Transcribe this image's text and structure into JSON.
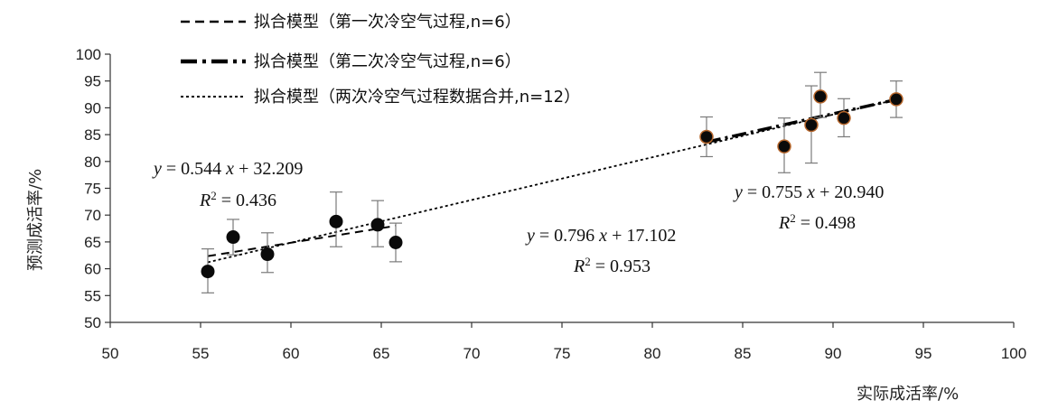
{
  "chart_data": {
    "type": "scatter",
    "xlabel": "实际成活率/%",
    "ylabel": "预测成活率/%",
    "xlim": [
      50,
      100
    ],
    "ylim": [
      50,
      100
    ],
    "x_ticks": [
      50,
      55,
      60,
      65,
      70,
      75,
      80,
      85,
      90,
      95,
      100
    ],
    "y_ticks": [
      50,
      55,
      60,
      65,
      70,
      75,
      80,
      85,
      90,
      95,
      100
    ],
    "grid": false,
    "legend_position": "top-left",
    "series": [
      {
        "name": "第一次冷空气过程",
        "points": [
          {
            "x": 55.4,
            "y": 59.5,
            "err_low": 4.0,
            "err_high": 4.2
          },
          {
            "x": 56.8,
            "y": 65.9,
            "err_low": 3.3,
            "err_high": 3.3
          },
          {
            "x": 58.7,
            "y": 62.7,
            "err_low": 3.4,
            "err_high": 4.0
          },
          {
            "x": 62.5,
            "y": 68.8,
            "err_low": 4.7,
            "err_high": 5.5
          },
          {
            "x": 64.8,
            "y": 68.2,
            "err_low": 4.1,
            "err_high": 4.5
          },
          {
            "x": 65.8,
            "y": 64.9,
            "err_low": 3.6,
            "err_high": 3.6
          }
        ]
      },
      {
        "name": "第二次冷空气过程",
        "points": [
          {
            "x": 83.0,
            "y": 84.6,
            "err_low": 3.7,
            "err_high": 3.7
          },
          {
            "x": 87.3,
            "y": 82.8,
            "err_low": 4.9,
            "err_high": 5.3
          },
          {
            "x": 88.8,
            "y": 86.8,
            "err_low": 7.1,
            "err_high": 7.3
          },
          {
            "x": 89.3,
            "y": 92.1,
            "err_low": 3.9,
            "err_high": 4.5
          },
          {
            "x": 90.6,
            "y": 88.1,
            "err_low": 3.5,
            "err_high": 3.6
          },
          {
            "x": 93.5,
            "y": 91.6,
            "err_low": 3.4,
            "err_high": 3.4
          }
        ]
      }
    ],
    "fits": [
      {
        "legend": "拟合模型（第一次冷空气过程,n=6）",
        "slope": 0.544,
        "intercept": 32.209,
        "x_range": [
          55.4,
          65.8
        ],
        "style": "dashed",
        "equation": "0.544",
        "equation_intercept": "32.209",
        "r2": "0.436"
      },
      {
        "legend": "拟合模型（第二次冷空气过程,n=6）",
        "slope": 0.755,
        "intercept": 20.94,
        "x_range": [
          83.0,
          93.5
        ],
        "style": "dash-dot",
        "equation": "0.755",
        "equation_intercept": "20.940",
        "r2": "0.498"
      },
      {
        "legend": "拟合模型（两次冷空气过程数据合并,n=12）",
        "slope": 0.796,
        "intercept": 17.102,
        "x_range": [
          55.4,
          93.5
        ],
        "style": "dotted",
        "equation": "0.796",
        "equation_intercept": "17.102",
        "r2": "0.953"
      }
    ],
    "colors": {
      "point": "#0a0a0a",
      "point_edge": "#b5652a",
      "line": "#000000",
      "axis": "#333333",
      "errorbar": "#7a7a7a"
    }
  }
}
